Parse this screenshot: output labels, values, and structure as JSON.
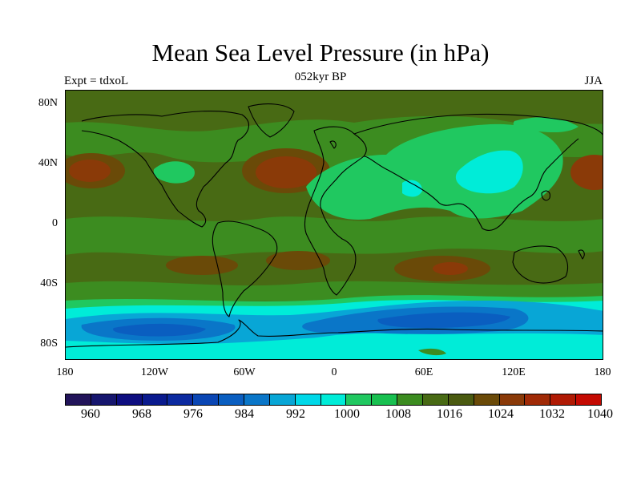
{
  "title": "Mean Sea Level Pressure (in hPa)",
  "subtitle": "052kyr BP",
  "experiment": "Expt = tdxoL",
  "season": "JJA",
  "lat_ticks": [
    "80N",
    "40N",
    "0",
    "40S",
    "80S"
  ],
  "lon_ticks": [
    "180",
    "120W",
    "60W",
    "0",
    "60E",
    "120E",
    "180"
  ],
  "colorbar": {
    "colors": [
      "#22145a",
      "#16166e",
      "#0e0e80",
      "#0a1a8e",
      "#0c2aa0",
      "#0a46b4",
      "#0a5ec0",
      "#0a76c8",
      "#08a6d6",
      "#00d8e8",
      "#00ecd8",
      "#20c860",
      "#18c050",
      "#3c8c20",
      "#486a14",
      "#4a5a10",
      "#6a4a08",
      "#8a3a08",
      "#a02a06",
      "#b01a04",
      "#c40a02"
    ],
    "labels": [
      "960",
      "968",
      "976",
      "984",
      "992",
      "1000",
      "1008",
      "1016",
      "1024",
      "1032",
      "1040"
    ]
  },
  "map_colors": {
    "ocean_base": "#486a14",
    "high_1": "#6a4a08",
    "high_2": "#8a3a08",
    "mid_green": "#3c8c20",
    "light_green": "#20c860",
    "cyan": "#00ecd8",
    "teal": "#08a6d6",
    "blue": "#0a76c8",
    "deep_blue": "#0a5ec0",
    "coast": "#000000"
  }
}
